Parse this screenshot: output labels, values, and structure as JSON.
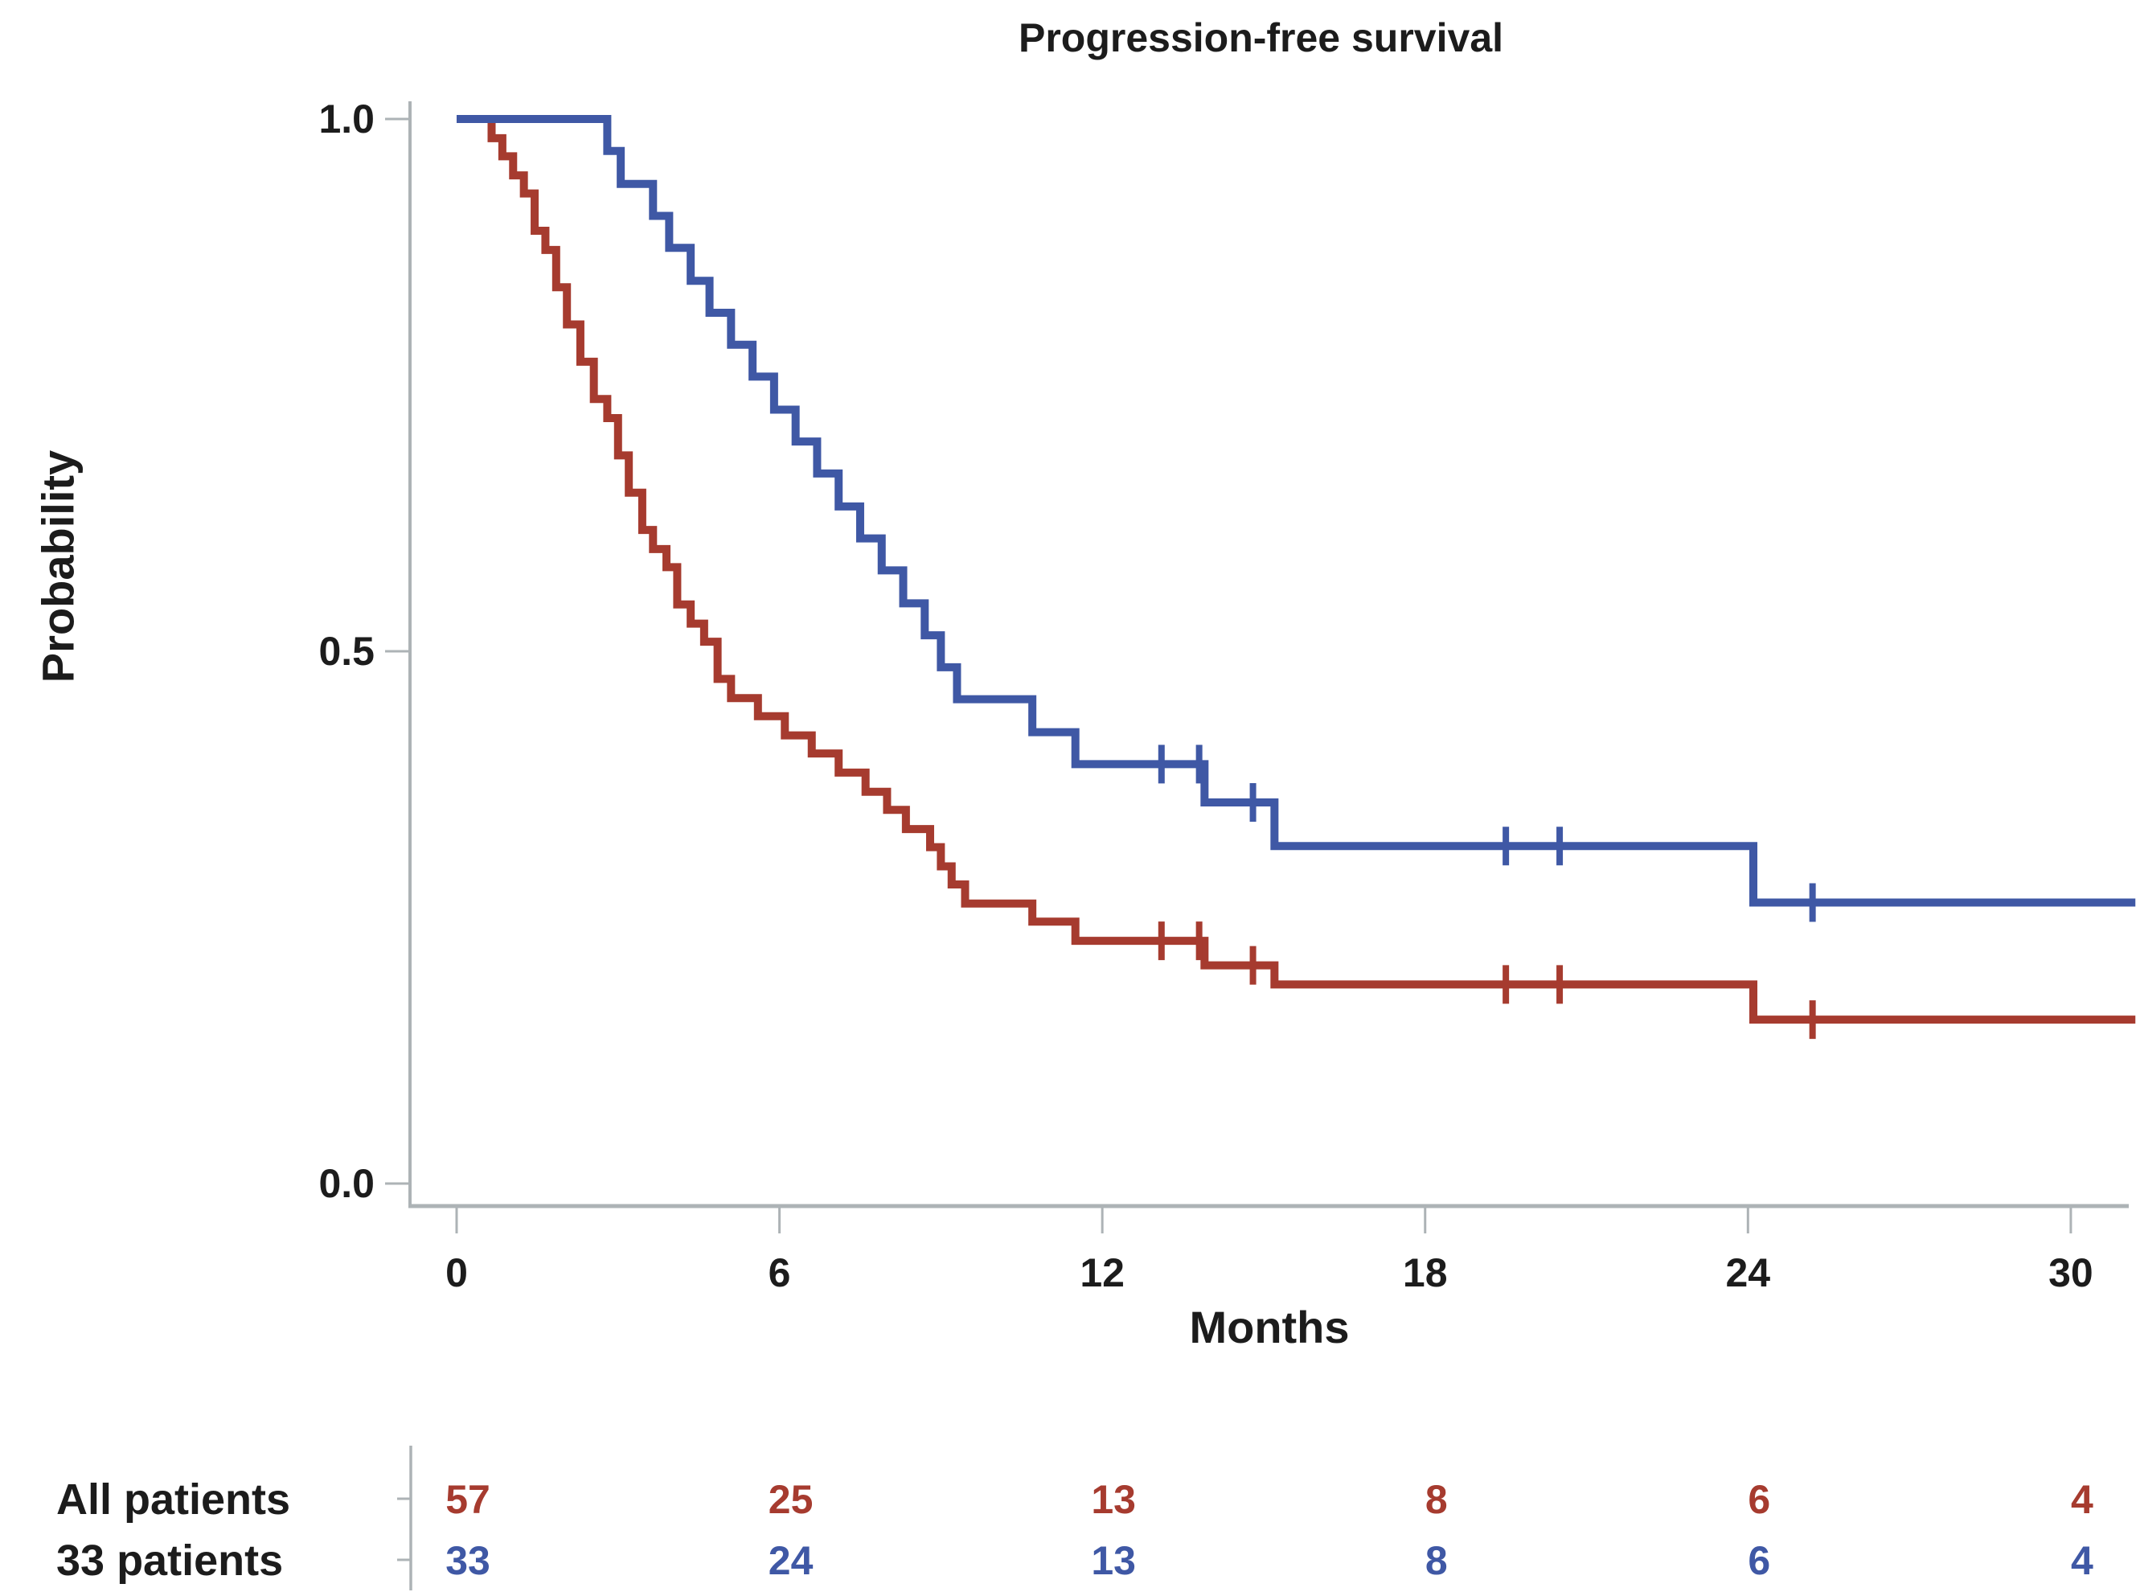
{
  "title": "Progression-free survival",
  "axes": {
    "x_label": "Months",
    "y_label": "Probability",
    "x_tick_labels": [
      "0",
      "6",
      "12",
      "18",
      "24",
      "30"
    ],
    "y_tick_labels": [
      "1.0",
      "0.5",
      "0.0"
    ],
    "y_tick_values": [
      1.0,
      0.5,
      0.0
    ]
  },
  "colors": {
    "all_patients_red": "#a63b2f",
    "subgroup_blue": "#3f58a5",
    "axis_gray": "#adb3b6",
    "text_black": "#1c1c1c"
  },
  "chart_data": {
    "type": "line",
    "subtype": "kaplan-meier-step",
    "title": "Progression-free survival",
    "xlabel": "Months",
    "ylabel": "Probability",
    "xlim": [
      0,
      31.2
    ],
    "ylim": [
      0.0,
      1.0
    ],
    "x_ticks": [
      0,
      6,
      12,
      18,
      24,
      30
    ],
    "y_ticks": [
      0.0,
      0.5,
      1.0
    ],
    "grid": false,
    "legend": "none",
    "series": [
      {
        "name": "All patients",
        "n": 57,
        "color": "#a63b2f",
        "start": [
          0,
          1.0
        ],
        "end_time": 31.2,
        "steps": [
          [
            0.65,
            0.982
          ],
          [
            0.85,
            0.965
          ],
          [
            1.05,
            0.947
          ],
          [
            1.25,
            0.93
          ],
          [
            1.45,
            0.895
          ],
          [
            1.65,
            0.877
          ],
          [
            1.85,
            0.842
          ],
          [
            2.05,
            0.807
          ],
          [
            2.3,
            0.772
          ],
          [
            2.55,
            0.737
          ],
          [
            2.8,
            0.719
          ],
          [
            3.0,
            0.684
          ],
          [
            3.2,
            0.649
          ],
          [
            3.45,
            0.614
          ],
          [
            3.65,
            0.596
          ],
          [
            3.9,
            0.579
          ],
          [
            4.1,
            0.544
          ],
          [
            4.35,
            0.526
          ],
          [
            4.6,
            0.509
          ],
          [
            4.85,
            0.474
          ],
          [
            5.1,
            0.456
          ],
          [
            5.6,
            0.439
          ],
          [
            6.1,
            0.421
          ],
          [
            6.6,
            0.404
          ],
          [
            7.1,
            0.386
          ],
          [
            7.6,
            0.368
          ],
          [
            8.0,
            0.351
          ],
          [
            8.35,
            0.333
          ],
          [
            8.8,
            0.316
          ],
          [
            9.0,
            0.298
          ],
          [
            9.2,
            0.281
          ],
          [
            9.45,
            0.263
          ],
          [
            10.7,
            0.246
          ],
          [
            11.5,
            0.228
          ],
          [
            13.9,
            0.205
          ],
          [
            15.2,
            0.187
          ],
          [
            24.1,
            0.154
          ]
        ],
        "censor_marks": [
          [
            13.1,
            0.228
          ],
          [
            13.8,
            0.228
          ],
          [
            14.8,
            0.205
          ],
          [
            19.5,
            0.187
          ],
          [
            20.5,
            0.187
          ],
          [
            25.2,
            0.154
          ]
        ]
      },
      {
        "name": "33 patients",
        "n": 33,
        "color": "#3f58a5",
        "start": [
          0,
          1.0
        ],
        "end_time": 31.2,
        "steps": [
          [
            2.8,
            0.97
          ],
          [
            3.05,
            0.939
          ],
          [
            3.65,
            0.909
          ],
          [
            3.95,
            0.879
          ],
          [
            4.35,
            0.848
          ],
          [
            4.7,
            0.818
          ],
          [
            5.1,
            0.788
          ],
          [
            5.5,
            0.758
          ],
          [
            5.9,
            0.727
          ],
          [
            6.3,
            0.697
          ],
          [
            6.7,
            0.667
          ],
          [
            7.1,
            0.636
          ],
          [
            7.5,
            0.606
          ],
          [
            7.9,
            0.576
          ],
          [
            8.3,
            0.545
          ],
          [
            8.7,
            0.515
          ],
          [
            9.0,
            0.485
          ],
          [
            9.3,
            0.455
          ],
          [
            10.7,
            0.424
          ],
          [
            11.5,
            0.394
          ],
          [
            13.9,
            0.358
          ],
          [
            15.2,
            0.317
          ],
          [
            24.1,
            0.264
          ]
        ],
        "censor_marks": [
          [
            13.1,
            0.394
          ],
          [
            13.8,
            0.394
          ],
          [
            14.8,
            0.358
          ],
          [
            19.5,
            0.317
          ],
          [
            20.5,
            0.317
          ],
          [
            25.2,
            0.264
          ]
        ]
      }
    ],
    "risk_table": {
      "tick_months": [
        0,
        6,
        12,
        18,
        24,
        30
      ],
      "rows": [
        {
          "label": "All patients",
          "color": "#a63b2f",
          "counts": [
            "57",
            "25",
            "13",
            "8",
            "6",
            "4"
          ]
        },
        {
          "label": "33 patients",
          "color": "#3f58a5",
          "counts": [
            "33",
            "24",
            "13",
            "8",
            "6",
            "4"
          ]
        }
      ]
    }
  }
}
